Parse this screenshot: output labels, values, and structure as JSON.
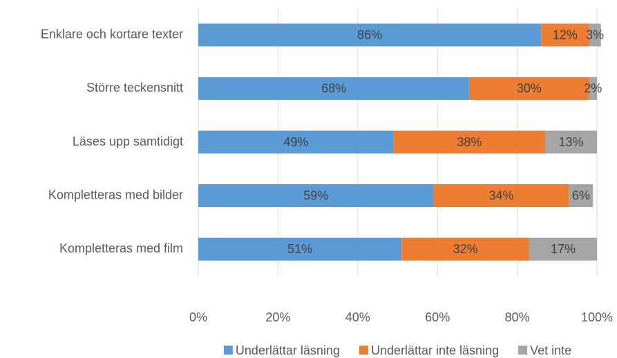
{
  "chart_data": {
    "type": "stacked-bar-horizontal",
    "categories": [
      "Enklare och kortare texter",
      "Större teckensnitt",
      "Läses upp samtidigt",
      "Kompletteras med bilder",
      "Kompletteras med film"
    ],
    "series": [
      {
        "name": "Underlättar läsning",
        "color": "#5b9bd5",
        "values": [
          86,
          68,
          49,
          59,
          51
        ],
        "value_labels": [
          "86%",
          "68%",
          "49%",
          "59%",
          "51%"
        ]
      },
      {
        "name": "Underlättar inte läsning",
        "color": "#ed7d31",
        "values": [
          12,
          30,
          38,
          34,
          32
        ],
        "value_labels": [
          "12%",
          "30%",
          "38%",
          "34%",
          "32%"
        ]
      },
      {
        "name": "Vet inte",
        "color": "#a5a5a5",
        "values": [
          3,
          2,
          13,
          6,
          17
        ],
        "value_labels": [
          "3%",
          "2%",
          "13%",
          "6%",
          "17%"
        ]
      }
    ],
    "xlim": [
      0,
      100
    ],
    "xticks": [
      {
        "value": 0,
        "label": "0%"
      },
      {
        "value": 20,
        "label": "20%"
      },
      {
        "value": 40,
        "label": "40%"
      },
      {
        "value": 60,
        "label": "60%"
      },
      {
        "value": 80,
        "label": "80%"
      },
      {
        "value": 100,
        "label": "100%"
      }
    ],
    "grid": true,
    "legend": "bottom"
  }
}
